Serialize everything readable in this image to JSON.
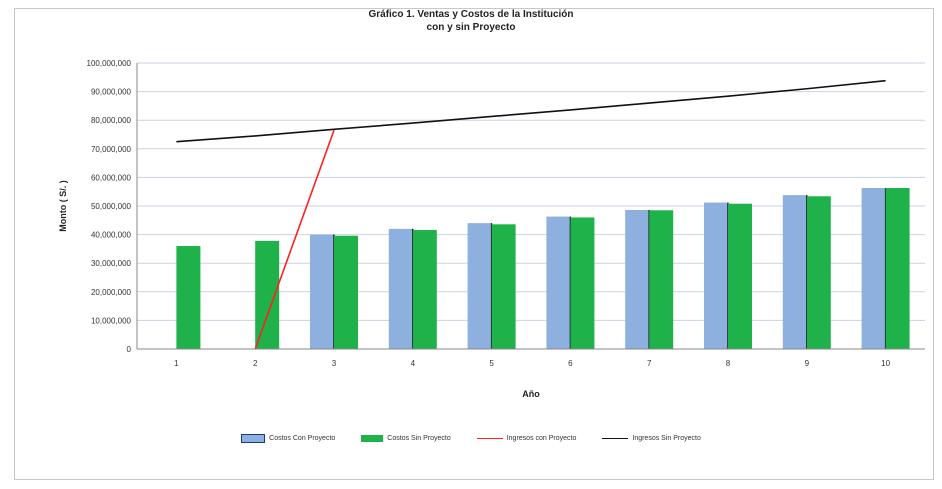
{
  "chart_data": {
    "type": "bar",
    "title": "Gráfico 1.  Ventas y Costos de la Institución",
    "subtitle": "con y sin Proyecto",
    "xlabel": "Año",
    "ylabel": "Monto   ( S/. )",
    "categories": [
      "1",
      "2",
      "3",
      "4",
      "5",
      "6",
      "7",
      "8",
      "9",
      "10"
    ],
    "y_ticks": [
      "0",
      "10,000,000",
      "20,000,000",
      "30,000,000",
      "40,000,000",
      "50,000,000",
      "60,000,000",
      "70,000,000",
      "80,000,000",
      "90,000,000",
      "100,000,000"
    ],
    "ylim": [
      0,
      100000000
    ],
    "grid": "horizontal",
    "legend_position": "bottom",
    "series": [
      {
        "name": "Costos Con Proyecto",
        "kind": "bar",
        "color": "#8eb0df",
        "values": [
          null,
          null,
          40000000,
          42000000,
          44000000,
          46300000,
          48600000,
          51200000,
          53800000,
          56300000
        ]
      },
      {
        "name": "Costos Sin Proyecto",
        "kind": "bar",
        "color": "#1fb24a",
        "values": [
          36000000,
          37800000,
          39600000,
          41600000,
          43600000,
          46000000,
          48500000,
          50800000,
          53400000,
          56300000
        ]
      },
      {
        "name": "Ingresos con Proyecto",
        "kind": "line",
        "color": "#ff2020",
        "values": [
          null,
          0,
          76500000,
          null,
          null,
          null,
          null,
          null,
          null,
          null
        ]
      },
      {
        "name": "Ingresos Sin Proyecto",
        "kind": "line",
        "color": "#111111",
        "values": [
          72500000,
          74500000,
          76800000,
          79000000,
          81300000,
          83600000,
          86000000,
          88400000,
          91000000,
          93800000
        ]
      }
    ]
  }
}
